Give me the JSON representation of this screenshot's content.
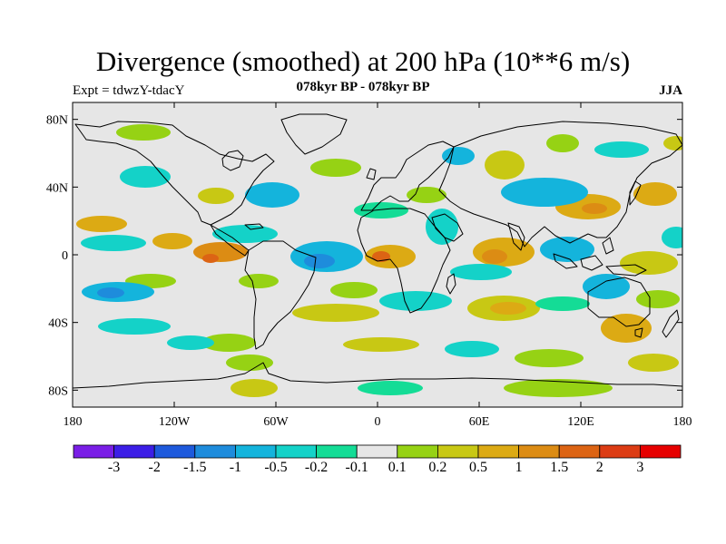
{
  "title": "Divergence (smoothed) at 200 hPa (10**6 m/s)",
  "subtitle": "078kyr BP - 078kyr BP",
  "experiment": "Expt = tdwzY-tdacY",
  "season": "JJA",
  "map": {
    "projection": "cylindrical equidistant",
    "lon_range": [
      -180,
      180
    ],
    "lat_range": [
      -90,
      90
    ],
    "background_color": "#e6e6e6",
    "lat_ticks": [
      {
        "value": 80,
        "label": "80N"
      },
      {
        "value": 40,
        "label": "40N"
      },
      {
        "value": 0,
        "label": "0"
      },
      {
        "value": -40,
        "label": "40S"
      },
      {
        "value": -80,
        "label": "80S"
      }
    ],
    "lon_ticks": [
      {
        "value": -180,
        "label": "180"
      },
      {
        "value": -120,
        "label": "120W"
      },
      {
        "value": -60,
        "label": "60W"
      },
      {
        "value": 0,
        "label": "0"
      },
      {
        "value": 60,
        "label": "60E"
      },
      {
        "value": 120,
        "label": "120E"
      },
      {
        "value": 180,
        "label": "180"
      }
    ]
  },
  "colorbar": {
    "colors": [
      "#7a1ee6",
      "#3c1ee6",
      "#1e5adc",
      "#1e8cdc",
      "#14b4dc",
      "#14d2c8",
      "#14dc96",
      "#e6e6e6",
      "#96d214",
      "#c8c814",
      "#dcaa14",
      "#dc8c14",
      "#dc6414",
      "#dc3c14",
      "#e60000"
    ],
    "labels": [
      "-3",
      "-2",
      "-1.5",
      "-1",
      "-0.5",
      "-0.2",
      "-0.1",
      "0.1",
      "0.2",
      "0.5",
      "1",
      "1.5",
      "2",
      "3"
    ]
  }
}
